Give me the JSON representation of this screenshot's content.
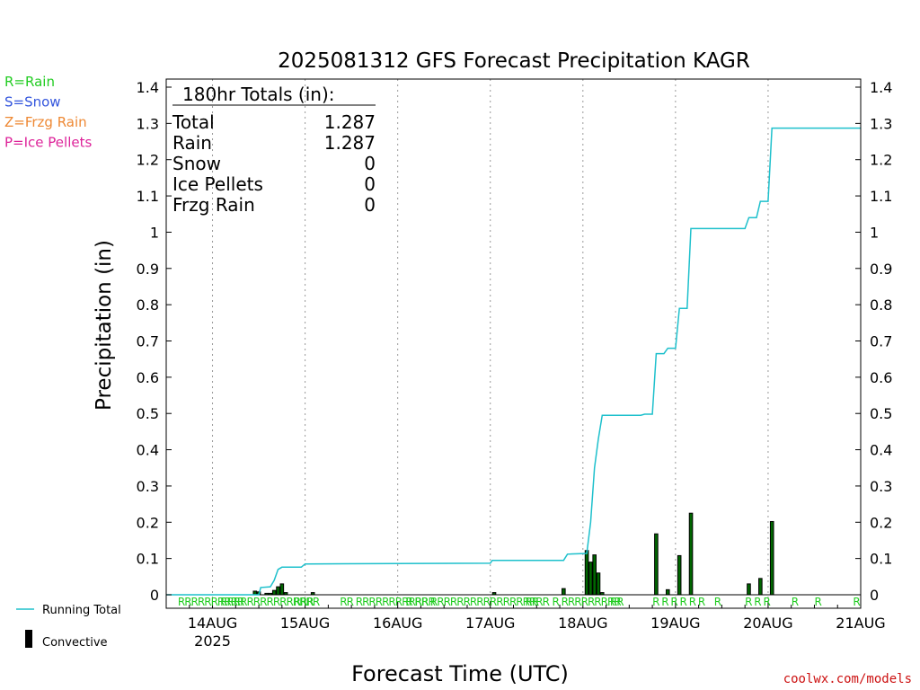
{
  "chart_data": {
    "type": "bar",
    "title": "2025081312 GFS Forecast Precipitation KAGR",
    "xlabel": "Forecast Time (UTC)",
    "ylabel": "Precipitation (in)",
    "ylim": [
      0,
      1.4
    ],
    "yticks": [
      0,
      0.1,
      0.2,
      0.3,
      0.4,
      0.5,
      0.6,
      0.7,
      0.8,
      0.9,
      1,
      1.1,
      1.2,
      1.3,
      1.4
    ],
    "xlim_hours": [
      0,
      180
    ],
    "x_ticks": [
      {
        "label": "14AUG",
        "sub": "2025",
        "hour": 12
      },
      {
        "label": "15AUG",
        "sub": "",
        "hour": 36
      },
      {
        "label": "16AUG",
        "sub": "",
        "hour": 60
      },
      {
        "label": "17AUG",
        "sub": "",
        "hour": 84
      },
      {
        "label": "18AUG",
        "sub": "",
        "hour": 108
      },
      {
        "label": "19AUG",
        "sub": "",
        "hour": 132
      },
      {
        "label": "20AUG",
        "sub": "",
        "hour": 156
      },
      {
        "label": "21AUG",
        "sub": "",
        "hour": 180
      }
    ],
    "grid": "vertical-dotted",
    "legend_placement": "bottom-left",
    "ptype_key": [
      {
        "text": "R=Rain",
        "color": "#22cc22"
      },
      {
        "text": "S=Snow",
        "color": "#3355dd"
      },
      {
        "text": "Z=Frzg Rain",
        "color": "#ee8833"
      },
      {
        "text": "P=Ice Pellets",
        "color": "#dd2299"
      }
    ],
    "legend": [
      {
        "text": "Running Total",
        "color": "#1ec0cc",
        "kind": "line"
      },
      {
        "text": "Convective",
        "color": "#000000",
        "kind": "bar"
      }
    ],
    "totals_box": {
      "header": "180hr Totals (in):",
      "rows": [
        {
          "label": "Total",
          "value": "1.287"
        },
        {
          "label": "Rain",
          "value": "1.287"
        },
        {
          "label": "Snow",
          "value": "0"
        },
        {
          "label": "Ice Pellets",
          "value": "0"
        },
        {
          "label": "Frzg Rain",
          "value": "0"
        }
      ]
    },
    "series": [
      {
        "name": "Running Total",
        "color": "#1ec0cc",
        "points": [
          [
            0,
            0
          ],
          [
            24,
            0
          ],
          [
            24.5,
            0.02
          ],
          [
            27,
            0.022
          ],
          [
            28,
            0.04
          ],
          [
            29,
            0.07
          ],
          [
            30,
            0.076
          ],
          [
            35,
            0.076
          ],
          [
            36,
            0.085
          ],
          [
            60,
            0.086
          ],
          [
            84,
            0.087
          ],
          [
            84.5,
            0.095
          ],
          [
            103,
            0.095
          ],
          [
            104,
            0.112
          ],
          [
            109,
            0.114
          ],
          [
            110,
            0.2
          ],
          [
            111,
            0.35
          ],
          [
            112,
            0.43
          ],
          [
            113,
            0.495
          ],
          [
            119,
            0.495
          ],
          [
            123,
            0.495
          ],
          [
            124,
            0.498
          ],
          [
            126,
            0.498
          ],
          [
            127,
            0.665
          ],
          [
            129,
            0.665
          ],
          [
            130,
            0.68
          ],
          [
            132,
            0.68
          ],
          [
            133,
            0.79
          ],
          [
            135,
            0.79
          ],
          [
            136,
            1.01
          ],
          [
            150,
            1.01
          ],
          [
            151,
            1.04
          ],
          [
            153,
            1.04
          ],
          [
            154,
            1.085
          ],
          [
            156,
            1.085
          ],
          [
            157,
            1.287
          ],
          [
            180,
            1.287
          ]
        ]
      },
      {
        "name": "Convective",
        "color": "#000000",
        "fill": "#006600",
        "points": [
          [
            23,
            0.01
          ],
          [
            24,
            0.008
          ],
          [
            26,
            0.004
          ],
          [
            27,
            0.004
          ],
          [
            28,
            0.012
          ],
          [
            29,
            0.022
          ],
          [
            30,
            0.03
          ],
          [
            31,
            0.006
          ],
          [
            38,
            0.006
          ],
          [
            85,
            0.006
          ],
          [
            103,
            0.017
          ],
          [
            109,
            0.122
          ],
          [
            110,
            0.09
          ],
          [
            111,
            0.11
          ],
          [
            112,
            0.06
          ],
          [
            113,
            0.006
          ],
          [
            127,
            0.168
          ],
          [
            130,
            0.014
          ],
          [
            133,
            0.108
          ],
          [
            136,
            0.225
          ],
          [
            151,
            0.03
          ],
          [
            154,
            0.045
          ],
          [
            157,
            0.202
          ]
        ]
      }
    ],
    "ptype_markers": [
      {
        "hour": 3,
        "text": "RRRRRRRRRR"
      },
      {
        "hour": 14,
        "text": "RRRRRRRRRRRRRRR"
      },
      {
        "hour": 33,
        "text": "RRR"
      },
      {
        "hour": 45,
        "text": "RR RRRRRRRRRRRR"
      },
      {
        "hour": 62,
        "text": "R RR RRRRRRRRRRRRRRRRRR"
      },
      {
        "hour": 93,
        "text": "RR"
      },
      {
        "hour": 100,
        "text": "R RRRRRRRRR"
      },
      {
        "hour": 115,
        "text": "RR"
      },
      {
        "hour": 126,
        "text": "R R R R R R"
      },
      {
        "hour": 142,
        "text": "R"
      },
      {
        "hour": 150,
        "text": "R R R"
      },
      {
        "hour": 162,
        "text": "R"
      },
      {
        "hour": 168,
        "text": "R"
      },
      {
        "hour": 178,
        "text": "R"
      }
    ],
    "credit": "coolwx.com/models"
  }
}
